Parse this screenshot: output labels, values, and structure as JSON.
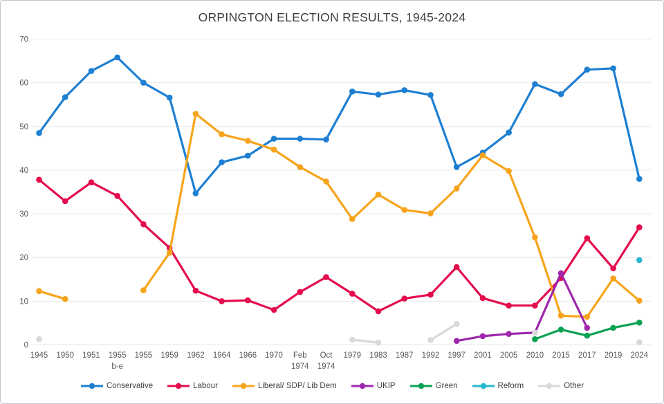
{
  "title": "ORPINGTON ELECTION RESULTS, 1945-2024",
  "chart_data": {
    "type": "line",
    "title": "ORPINGTON ELECTION RESULTS, 1945-2024",
    "grid": true,
    "legend_position": "bottom",
    "y_axis": {
      "min": 0,
      "max": 70,
      "step": 10,
      "ticks": [
        0,
        10,
        20,
        30,
        40,
        50,
        60,
        70
      ]
    },
    "categories": [
      [
        "1945"
      ],
      [
        "1950"
      ],
      [
        "1951"
      ],
      [
        "1955",
        "b-e"
      ],
      [
        "1955"
      ],
      [
        "1959"
      ],
      [
        "1962"
      ],
      [
        "1964"
      ],
      [
        "1966"
      ],
      [
        "1970"
      ],
      [
        "Feb",
        "1974"
      ],
      [
        "Oct",
        "1974"
      ],
      [
        "1979"
      ],
      [
        "1983"
      ],
      [
        "1987"
      ],
      [
        "1992"
      ],
      [
        "1997"
      ],
      [
        "2001"
      ],
      [
        "2005"
      ],
      [
        "2010"
      ],
      [
        "2015"
      ],
      [
        "2017"
      ],
      [
        "2019"
      ],
      [
        "2024"
      ]
    ],
    "series": [
      {
        "name": "Conservative",
        "color": "#1d7fd2",
        "segments": [
          [
            [
              0,
              48.5
            ],
            [
              1,
              56.7
            ],
            [
              2,
              62.7
            ],
            [
              3,
              65.8
            ],
            [
              4,
              60.0
            ],
            [
              5,
              56.6
            ],
            [
              6,
              34.7
            ],
            [
              7,
              41.8
            ],
            [
              8,
              43.3
            ],
            [
              9,
              47.2
            ],
            [
              10,
              47.2
            ],
            [
              11,
              47.0
            ],
            [
              12,
              58.0
            ],
            [
              13,
              57.3
            ],
            [
              14,
              58.3
            ],
            [
              15,
              57.2
            ],
            [
              16,
              40.7
            ],
            [
              17,
              44.0
            ],
            [
              18,
              48.6
            ],
            [
              19,
              59.7
            ],
            [
              20,
              57.4
            ],
            [
              21,
              63.0
            ],
            [
              22,
              63.3
            ],
            [
              23,
              38.0
            ]
          ]
        ]
      },
      {
        "name": "Labour",
        "color": "#e40c4d",
        "segments": [
          [
            [
              0,
              37.8
            ],
            [
              1,
              32.9
            ],
            [
              2,
              37.2
            ],
            [
              3,
              34.1
            ],
            [
              4,
              27.6
            ],
            [
              5,
              22.2
            ],
            [
              6,
              12.4
            ],
            [
              7,
              10.0
            ],
            [
              8,
              10.2
            ],
            [
              9,
              8.0
            ],
            [
              10,
              12.1
            ],
            [
              11,
              15.5
            ],
            [
              12,
              11.7
            ],
            [
              13,
              7.7
            ],
            [
              14,
              10.6
            ],
            [
              15,
              11.5
            ],
            [
              16,
              17.8
            ],
            [
              17,
              10.7
            ],
            [
              18,
              9.0
            ],
            [
              19,
              9.0
            ],
            [
              20,
              15.3
            ],
            [
              21,
              24.4
            ],
            [
              22,
              17.5
            ],
            [
              23,
              26.9
            ]
          ]
        ]
      },
      {
        "name": "Liberal/ SDP/ Lib Dem",
        "color": "#f7a41c",
        "segments": [
          [
            [
              0,
              12.3
            ],
            [
              1,
              10.5
            ]
          ],
          [
            [
              4,
              12.5
            ],
            [
              5,
              21.1
            ],
            [
              6,
              52.9
            ],
            [
              7,
              48.2
            ],
            [
              8,
              46.7
            ],
            [
              9,
              44.7
            ],
            [
              10,
              40.7
            ],
            [
              11,
              37.4
            ],
            [
              12,
              28.8
            ],
            [
              13,
              34.4
            ],
            [
              14,
              30.9
            ],
            [
              15,
              30.1
            ],
            [
              16,
              35.8
            ],
            [
              17,
              43.4
            ],
            [
              18,
              39.8
            ],
            [
              19,
              24.6
            ],
            [
              20,
              6.7
            ],
            [
              21,
              6.4
            ],
            [
              22,
              15.2
            ],
            [
              23,
              10.1
            ]
          ]
        ]
      },
      {
        "name": "UKIP",
        "color": "#9e27ad",
        "segments": [
          [
            [
              16,
              0.9
            ],
            [
              17,
              2.0
            ],
            [
              18,
              2.5
            ],
            [
              19,
              2.8
            ],
            [
              20,
              16.4
            ],
            [
              21,
              3.9
            ]
          ]
        ]
      },
      {
        "name": "Green",
        "color": "#0ba253",
        "segments": [
          [
            [
              19,
              1.3
            ],
            [
              20,
              3.5
            ],
            [
              21,
              2.1
            ],
            [
              22,
              3.9
            ],
            [
              23,
              5.1
            ]
          ]
        ]
      },
      {
        "name": "Reform",
        "color": "#27b8ce",
        "segments": [
          [
            [
              23,
              19.4
            ]
          ]
        ]
      },
      {
        "name": "Other",
        "color": "#d9d9d9",
        "segments": [
          [
            [
              0,
              1.3
            ]
          ],
          [
            [
              12,
              1.2
            ],
            [
              13,
              0.5
            ]
          ],
          [
            [
              15,
              1.1
            ],
            [
              16,
              4.8
            ]
          ],
          [
            [
              19,
              2.8
            ]
          ],
          [
            [
              23,
              0.6
            ]
          ]
        ]
      }
    ]
  }
}
